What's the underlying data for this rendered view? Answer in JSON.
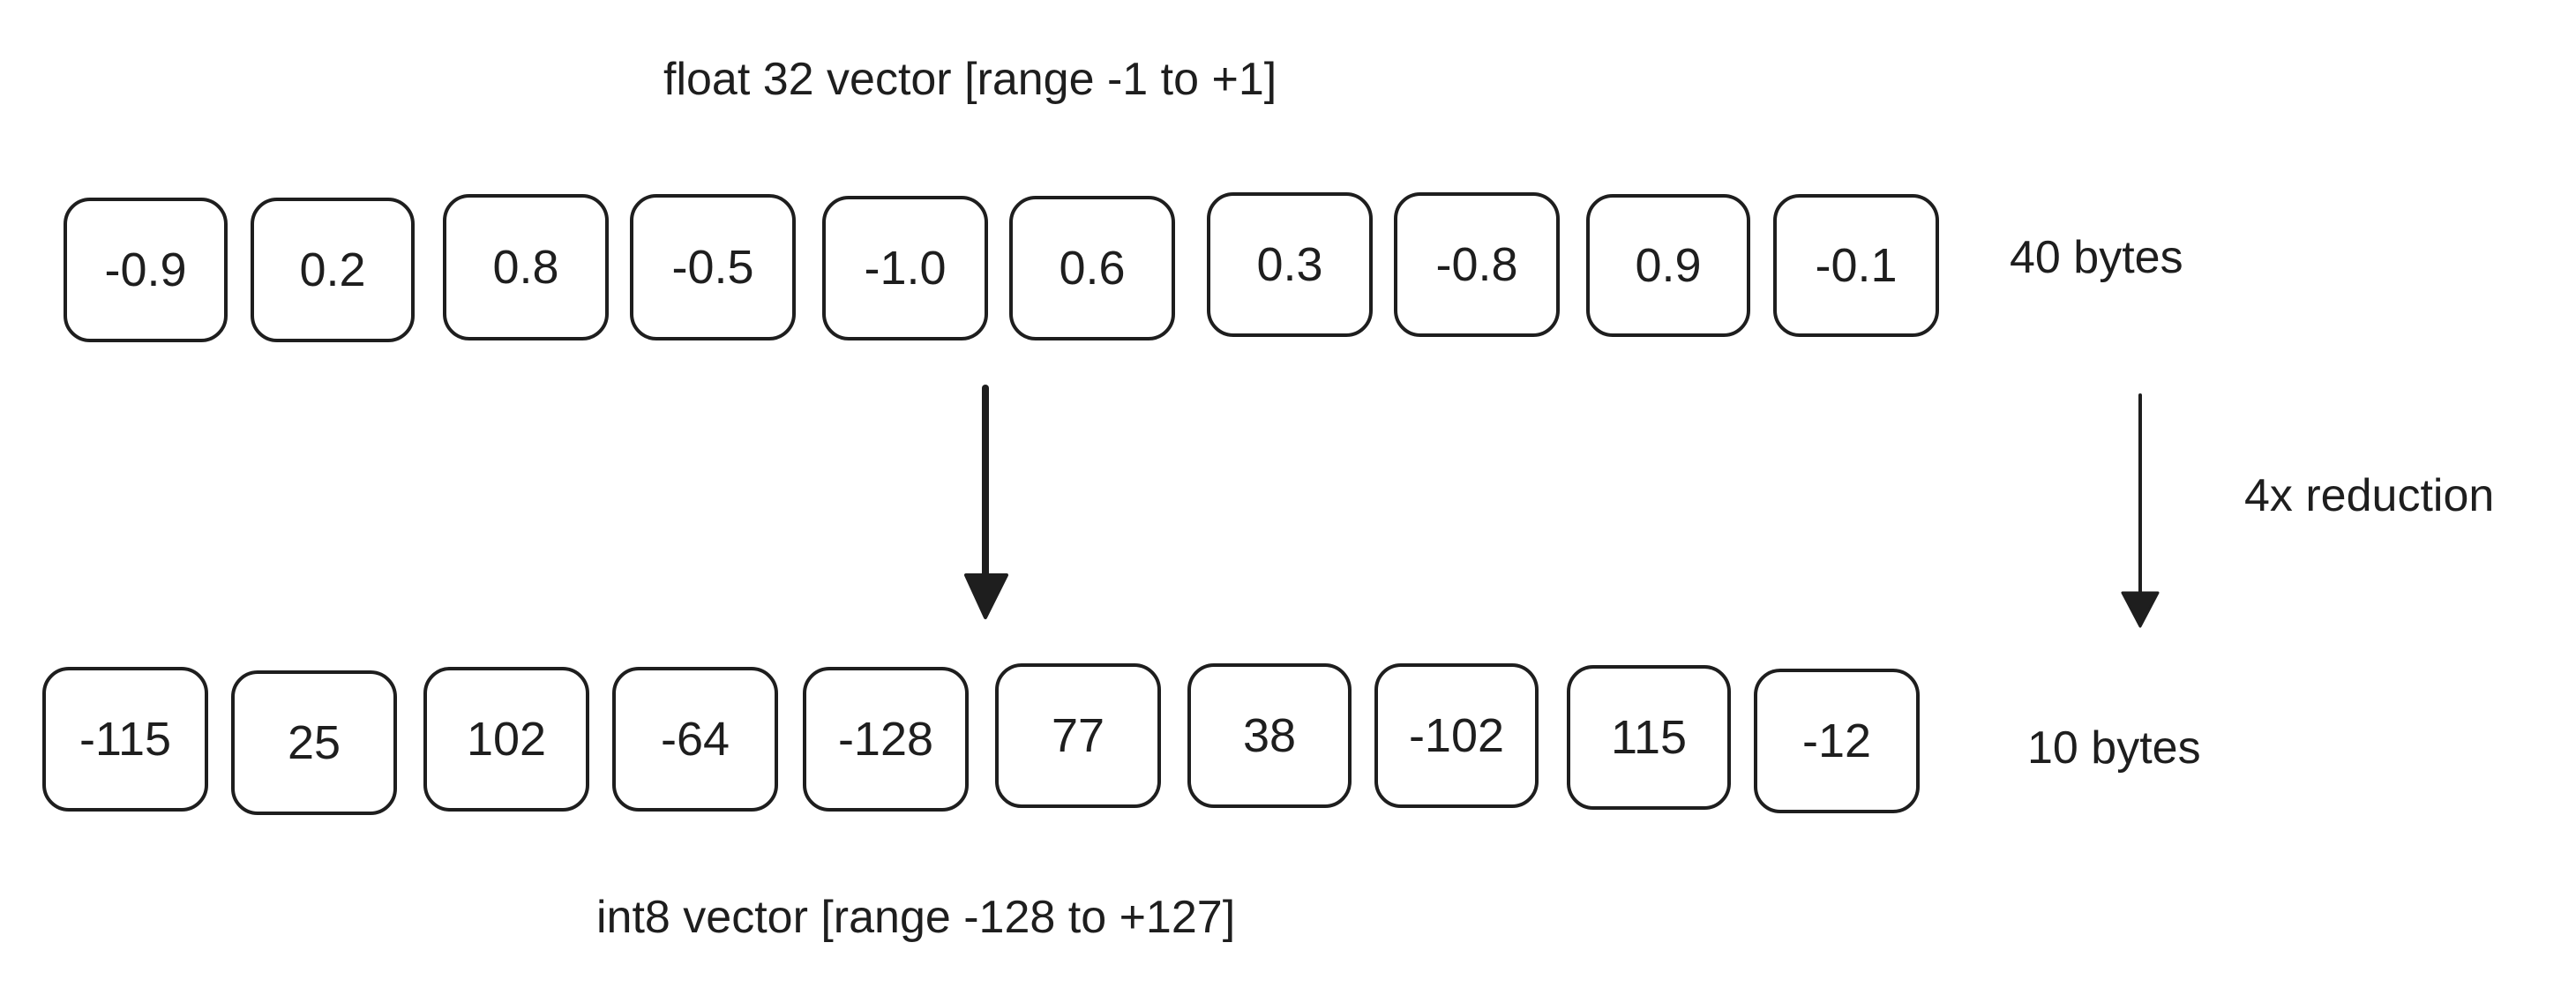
{
  "float_vector": {
    "title": "float 32 vector [range -1 to +1]",
    "size": "40 bytes",
    "values": [
      "-0.9",
      "0.2",
      "0.8",
      "-0.5",
      "-1.0",
      "0.6",
      "0.3",
      "-0.8",
      "0.9",
      "-0.1"
    ]
  },
  "int8_vector": {
    "title": "int8 vector [range -128 to +127]",
    "size": "10 bytes",
    "values": [
      "-115",
      "25",
      "102",
      "-64",
      "-128",
      "77",
      "38",
      "-102",
      "115",
      "-12"
    ]
  },
  "reduction_label": "4x reduction"
}
